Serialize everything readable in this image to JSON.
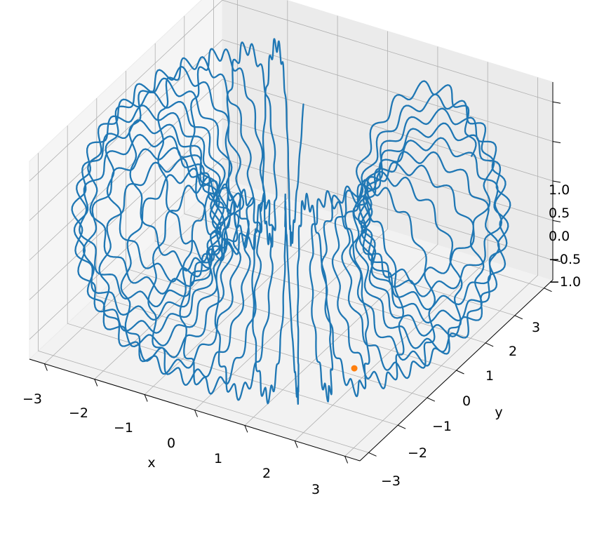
{
  "chart_data": {
    "type": "line3d",
    "title": "",
    "xlabel": "x",
    "ylabel": "y",
    "zlabel": "",
    "xlim": [
      -3.3,
      3.3
    ],
    "ylim": [
      -3.3,
      3.3
    ],
    "zlim": [
      -1.25,
      1.25
    ],
    "x_ticks": [
      "−3",
      "−2",
      "−1",
      "0",
      "1",
      "2",
      "3"
    ],
    "y_ticks": [
      "−3",
      "−2",
      "−1",
      "0",
      "1",
      "2",
      "3"
    ],
    "z_ticks": [
      "−1.0",
      "−0.5",
      "0.0",
      "0.5",
      "1.0"
    ],
    "grid": true,
    "series": [
      {
        "kind": "line",
        "color": "#1f77b4",
        "curve": "helical coil around a torus-like surface: major radius 2.5, minor radius 1.2, 30 poloidal turns spanning toroidal angle 0.15π to 1.85π, with small fast wobble",
        "R": 2.5,
        "r": 1.2,
        "turns": 30,
        "phi_start_pi": 0.15,
        "phi_end_pi": 1.85
      },
      {
        "kind": "point",
        "color": "#ff7f0e",
        "x": 2.05,
        "y": -1.35,
        "z": -1.0
      }
    ]
  }
}
